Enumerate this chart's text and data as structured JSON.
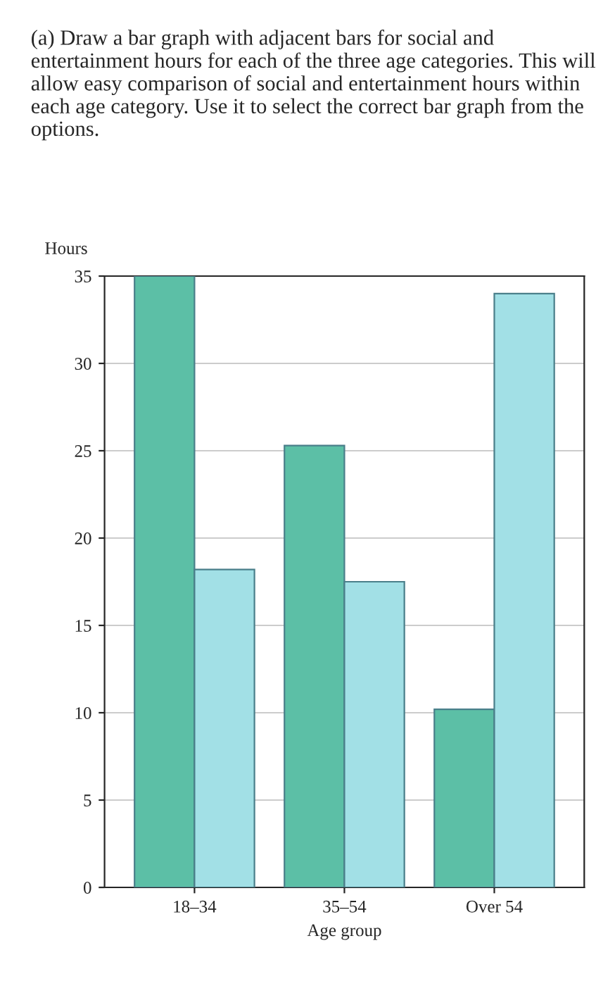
{
  "chart_data": {
    "type": "bar",
    "title": "(a) Draw a bar graph with adjacent bars for social and entertainment hours for each of the three age categories. This will allow easy comparison of social and entertainment hours within each age category. Use it to select the correct bar graph from the options.",
    "xlabel": "Age group",
    "ylabel": "Hours",
    "categories": [
      "18–34",
      "35–54",
      "Over 54"
    ],
    "series": [
      {
        "color": "#5cbfa6",
        "values": [
          35,
          25.3,
          10.2
        ]
      },
      {
        "color": "#a2e0e6",
        "values": [
          18.2,
          17.5,
          34
        ]
      }
    ],
    "ylim": [
      0,
      35
    ],
    "yticks": [
      0,
      5,
      10,
      15,
      20,
      25,
      30,
      35
    ],
    "grid": "y"
  }
}
